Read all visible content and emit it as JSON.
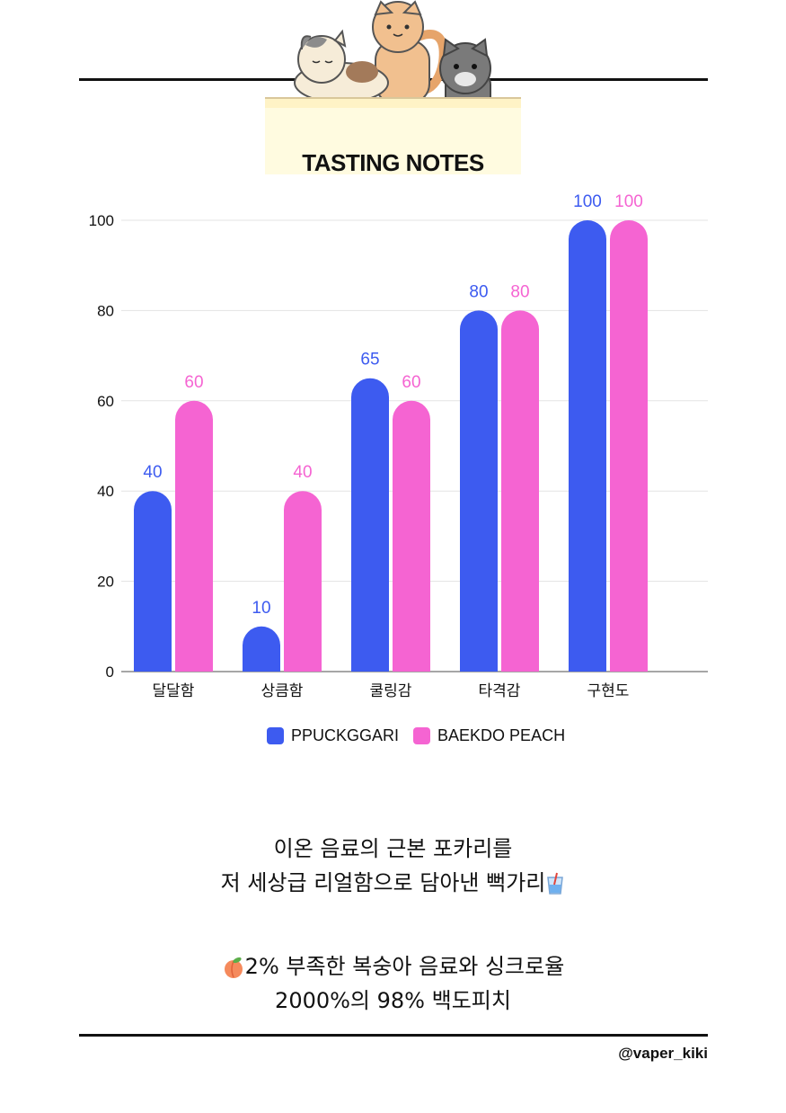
{
  "header": {
    "title": "TASTING NOTES"
  },
  "chart_data": {
    "type": "bar",
    "categories": [
      "달달함",
      "상큼함",
      "쿨링감",
      "타격감",
      "구현도"
    ],
    "series": [
      {
        "name": "PPUCKGGARI",
        "values": [
          40,
          10,
          65,
          80,
          100
        ],
        "color": "#3d5bf0"
      },
      {
        "name": "BAEKDO PEACH",
        "values": [
          60,
          40,
          60,
          80,
          100
        ],
        "color": "#f564d2"
      }
    ],
    "yticks": [
      "0",
      "20",
      "40",
      "60",
      "80",
      "100"
    ],
    "ylim": [
      0,
      100
    ],
    "grid": true,
    "legend_position": "bottom-center"
  },
  "description": {
    "lines_1": [
      "이온 음료의 근본 포카리를",
      "저 세상급 리얼함으로 담아낸 뻑가리"
    ],
    "line_2a": "2% 부족한 복숭아 음료와 싱크로율",
    "line_2b": "2000%의 98% 백도피치",
    "icons": [
      "drink-cup-icon",
      "peach-icon"
    ]
  },
  "footer": {
    "handle": "@vaper_kiki"
  }
}
